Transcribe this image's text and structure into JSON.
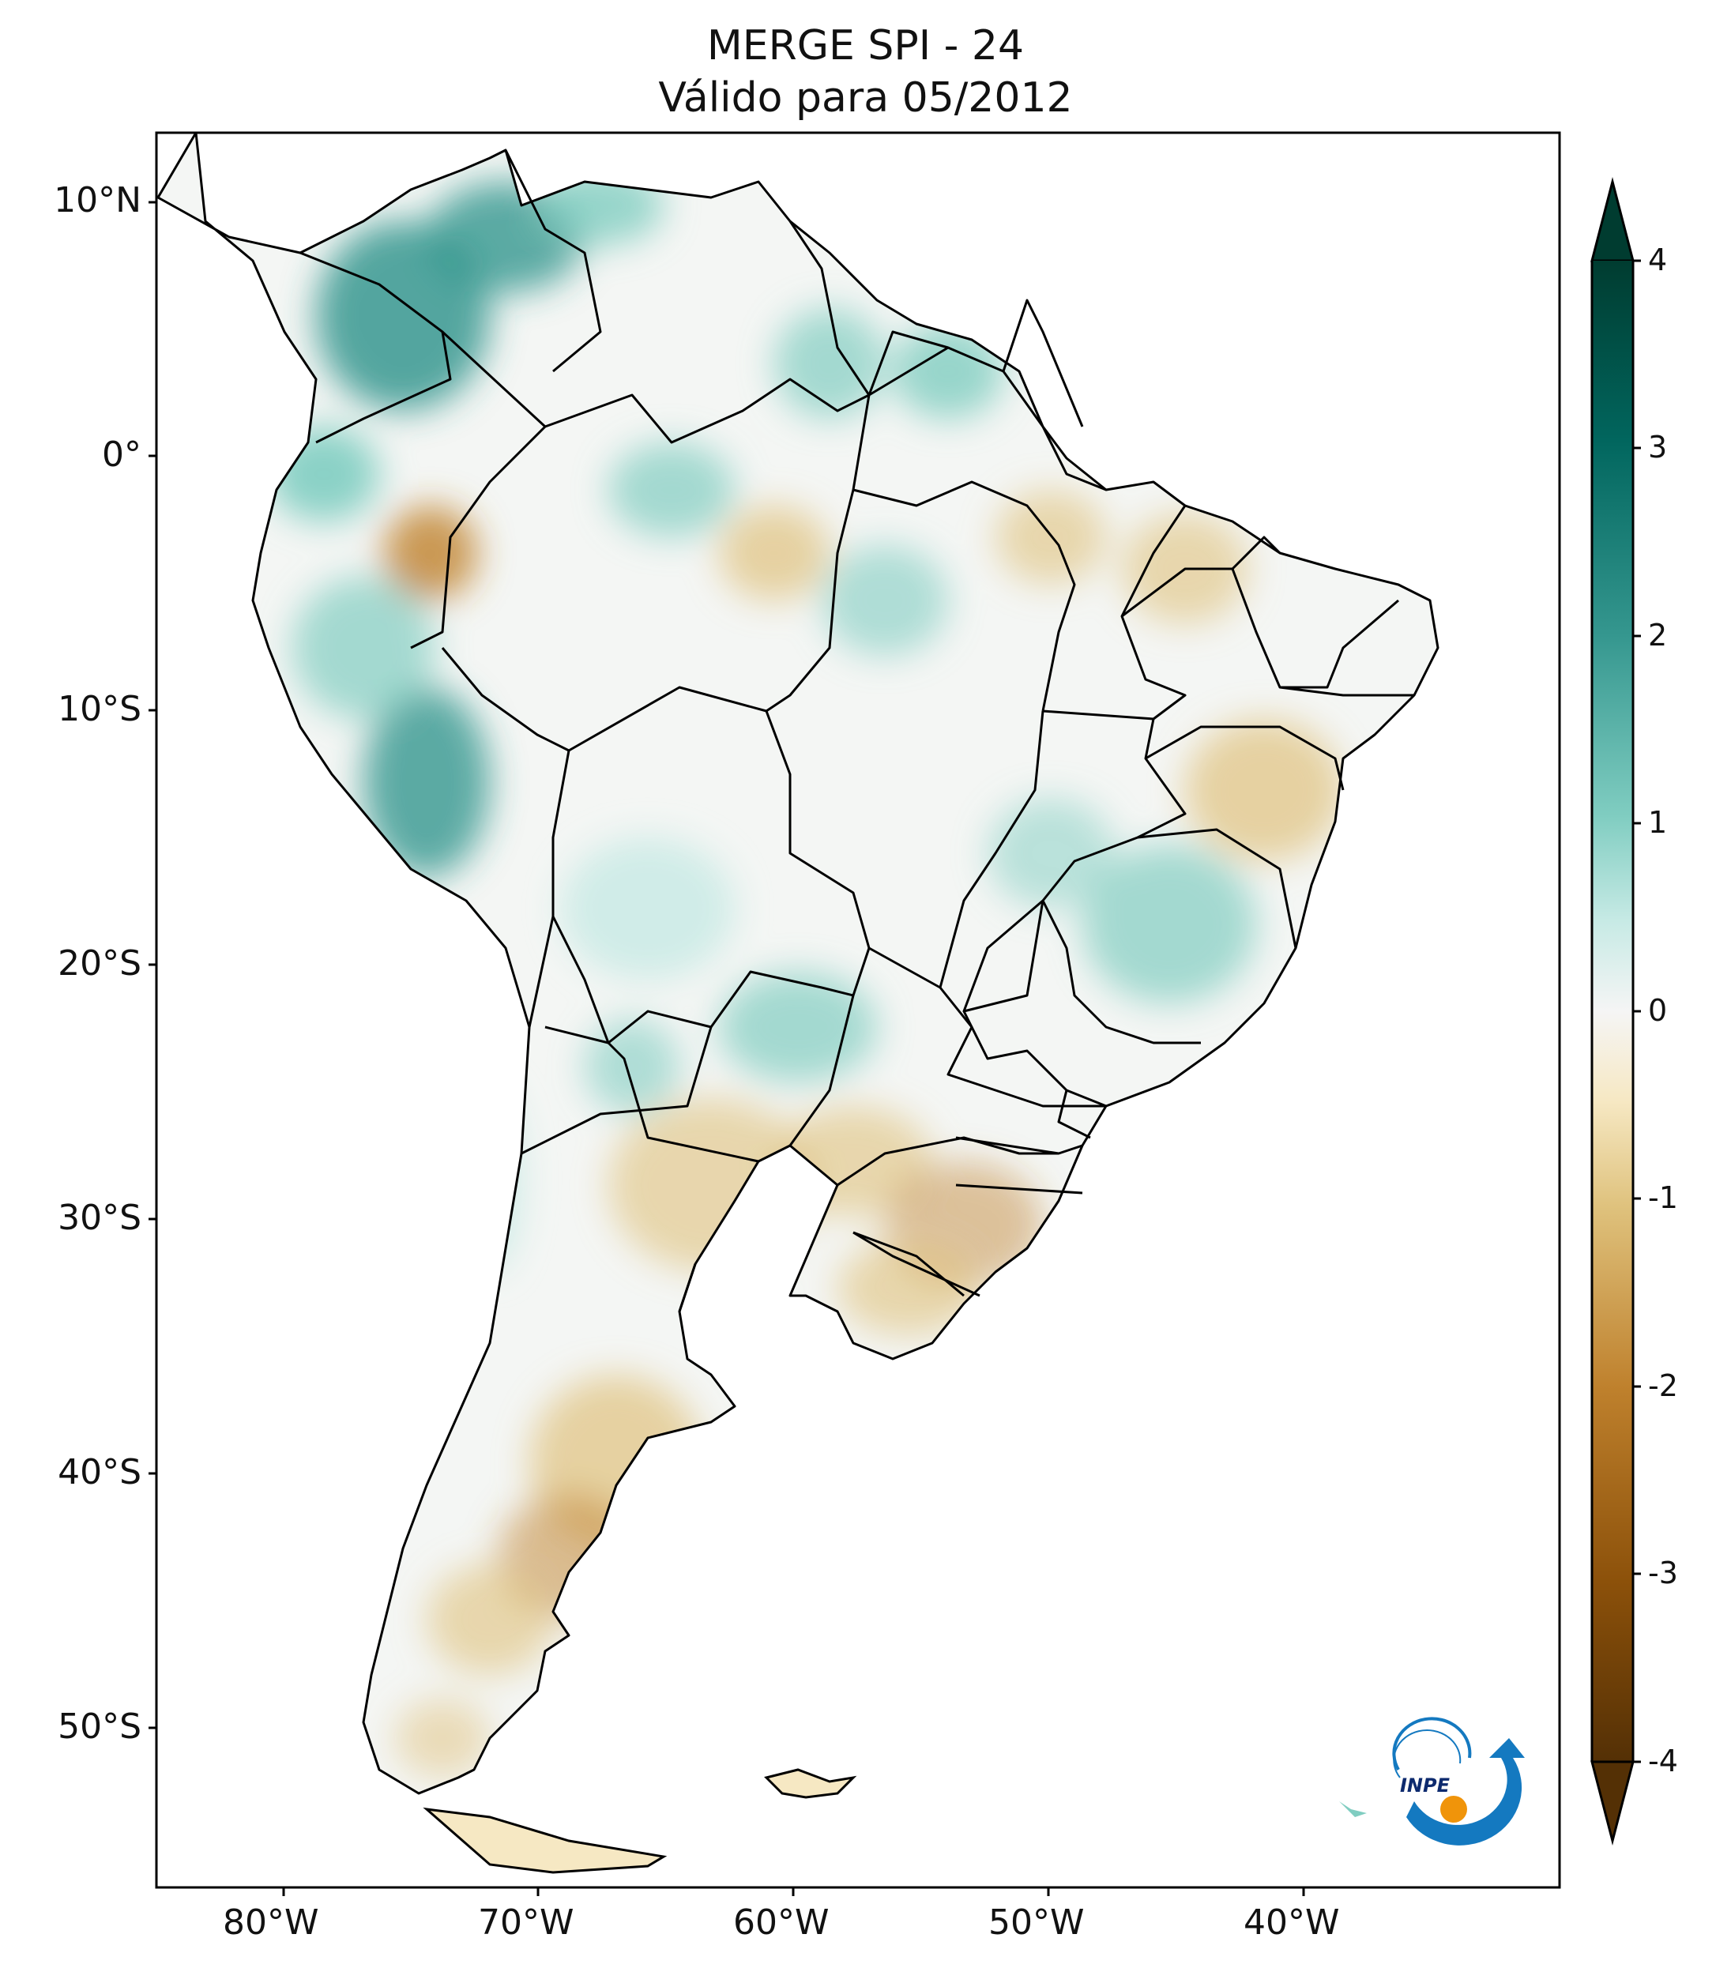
{
  "title_line1": "MERGE   SPI - 24",
  "title_line2": "Válido para 05/2012",
  "lat_labels": [
    "10°N",
    "0°",
    "10°S",
    "20°S",
    "30°S",
    "40°S",
    "50°S"
  ],
  "lon_labels": [
    "80°W",
    "70°W",
    "60°W",
    "50°W",
    "40°W"
  ],
  "colorbar": {
    "ticks": [
      "4",
      "3",
      "2",
      "1",
      "0",
      "-1",
      "-2",
      "-3",
      "-4"
    ],
    "colors": [
      "#543005",
      "#8c510a",
      "#bf812d",
      "#dfc27d",
      "#f6e8c3",
      "#f5f5f5",
      "#c7eae5",
      "#80cdc1",
      "#35978f",
      "#01665e",
      "#003c30"
    ],
    "extend": "both"
  },
  "logo_text": "INPE",
  "map": {
    "extent_lon": [
      -85,
      -30
    ],
    "extent_lat": [
      -56,
      13
    ]
  }
}
